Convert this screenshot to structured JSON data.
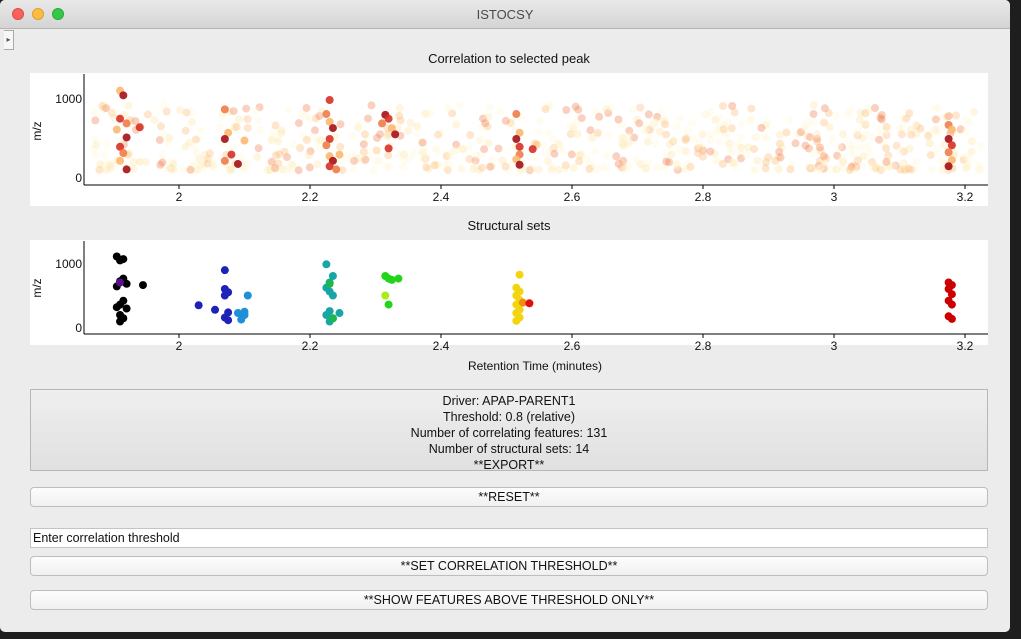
{
  "window": {
    "title": "ISTOCSY"
  },
  "plot1": {
    "title": "Correlation to selected peak",
    "ylabel": "m/z",
    "xticks": [
      "2",
      "2.2",
      "2.4",
      "2.6",
      "2.8",
      "3",
      "3.2"
    ],
    "yticks": [
      "1000",
      "0"
    ]
  },
  "plot2": {
    "title": "Structural sets",
    "ylabel": "m/z",
    "xlabel": "Retention Time (minutes)",
    "xticks": [
      "2",
      "2.2",
      "2.4",
      "2.6",
      "2.8",
      "3",
      "3.2"
    ],
    "yticks": [
      "1000",
      "0"
    ]
  },
  "chart_data": [
    {
      "type": "scatter",
      "title": "Correlation to selected peak",
      "xlabel": "",
      "ylabel": "m/z",
      "xlim": [
        1.86,
        3.24
      ],
      "ylim": [
        -100,
        1350
      ],
      "grid": false,
      "colormap": [
        "#fff5d6",
        "#fde6a8",
        "#fbb972",
        "#f07c4a",
        "#d73027",
        "#a50f15"
      ],
      "background_points": "dense cloud of faint low-correlation features spanning 1.86-3.24 min, m/z 100-950",
      "high_correlation_points": [
        {
          "x": 1.91,
          "y": 1120
        },
        {
          "x": 1.915,
          "y": 1060
        },
        {
          "x": 1.91,
          "y": 760
        },
        {
          "x": 1.92,
          "y": 700
        },
        {
          "x": 1.905,
          "y": 620
        },
        {
          "x": 1.92,
          "y": 520
        },
        {
          "x": 1.91,
          "y": 400
        },
        {
          "x": 1.915,
          "y": 320
        },
        {
          "x": 1.91,
          "y": 220
        },
        {
          "x": 1.92,
          "y": 110
        },
        {
          "x": 1.94,
          "y": 650
        },
        {
          "x": 2.07,
          "y": 880
        },
        {
          "x": 2.075,
          "y": 580
        },
        {
          "x": 2.07,
          "y": 500
        },
        {
          "x": 2.08,
          "y": 300
        },
        {
          "x": 2.07,
          "y": 220
        },
        {
          "x": 2.1,
          "y": 480
        },
        {
          "x": 2.09,
          "y": 180
        },
        {
          "x": 2.23,
          "y": 1000
        },
        {
          "x": 2.225,
          "y": 820
        },
        {
          "x": 2.23,
          "y": 720
        },
        {
          "x": 2.235,
          "y": 640
        },
        {
          "x": 2.23,
          "y": 500
        },
        {
          "x": 2.225,
          "y": 420
        },
        {
          "x": 2.23,
          "y": 280
        },
        {
          "x": 2.235,
          "y": 220
        },
        {
          "x": 2.23,
          "y": 150
        },
        {
          "x": 2.24,
          "y": 110
        },
        {
          "x": 2.245,
          "y": 300
        },
        {
          "x": 2.315,
          "y": 810
        },
        {
          "x": 2.32,
          "y": 760
        },
        {
          "x": 2.31,
          "y": 700
        },
        {
          "x": 2.325,
          "y": 640
        },
        {
          "x": 2.33,
          "y": 560
        },
        {
          "x": 2.32,
          "y": 380
        },
        {
          "x": 2.515,
          "y": 820
        },
        {
          "x": 2.52,
          "y": 580
        },
        {
          "x": 2.515,
          "y": 500
        },
        {
          "x": 2.52,
          "y": 400
        },
        {
          "x": 2.52,
          "y": 300
        },
        {
          "x": 2.515,
          "y": 240
        },
        {
          "x": 2.52,
          "y": 170
        },
        {
          "x": 2.54,
          "y": 370
        },
        {
          "x": 3.175,
          "y": 680
        },
        {
          "x": 3.18,
          "y": 620
        },
        {
          "x": 3.175,
          "y": 500
        },
        {
          "x": 3.18,
          "y": 420
        },
        {
          "x": 3.175,
          "y": 330
        },
        {
          "x": 3.18,
          "y": 230
        },
        {
          "x": 3.175,
          "y": 150
        }
      ]
    },
    {
      "type": "scatter",
      "title": "Structural sets",
      "xlabel": "Retention Time (minutes)",
      "ylabel": "m/z",
      "xlim": [
        1.86,
        3.24
      ],
      "ylim": [
        -100,
        1350
      ],
      "grid": false,
      "series": [
        {
          "color": "#000000",
          "points": [
            {
              "x": 1.905,
              "y": 1100
            },
            {
              "x": 1.915,
              "y": 1060
            },
            {
              "x": 1.91,
              "y": 1040
            },
            {
              "x": 1.915,
              "y": 760
            },
            {
              "x": 1.91,
              "y": 720
            },
            {
              "x": 1.92,
              "y": 680
            },
            {
              "x": 1.905,
              "y": 640
            },
            {
              "x": 1.945,
              "y": 660
            },
            {
              "x": 1.915,
              "y": 420
            },
            {
              "x": 1.91,
              "y": 360
            },
            {
              "x": 1.905,
              "y": 320
            },
            {
              "x": 1.92,
              "y": 300
            },
            {
              "x": 1.91,
              "y": 200
            },
            {
              "x": 1.915,
              "y": 150
            },
            {
              "x": 1.91,
              "y": 100
            }
          ]
        },
        {
          "color": "#5b0f8f",
          "points": [
            {
              "x": 1.91,
              "y": 700
            }
          ]
        },
        {
          "color": "#1e22b8",
          "points": [
            {
              "x": 2.03,
              "y": 350
            },
            {
              "x": 2.055,
              "y": 280
            },
            {
              "x": 2.07,
              "y": 890
            },
            {
              "x": 2.07,
              "y": 600
            },
            {
              "x": 2.075,
              "y": 550
            },
            {
              "x": 2.07,
              "y": 500
            },
            {
              "x": 2.075,
              "y": 240
            },
            {
              "x": 2.07,
              "y": 160
            },
            {
              "x": 2.075,
              "y": 120
            }
          ]
        },
        {
          "color": "#1f8fd8",
          "points": [
            {
              "x": 2.09,
              "y": 230
            },
            {
              "x": 2.1,
              "y": 200
            },
            {
              "x": 2.095,
              "y": 130
            },
            {
              "x": 2.105,
              "y": 500
            },
            {
              "x": 2.1,
              "y": 250
            }
          ]
        },
        {
          "color": "#17a6a6",
          "points": [
            {
              "x": 2.225,
              "y": 980
            },
            {
              "x": 2.235,
              "y": 800
            },
            {
              "x": 2.23,
              "y": 700
            },
            {
              "x": 2.225,
              "y": 620
            },
            {
              "x": 2.23,
              "y": 560
            },
            {
              "x": 2.235,
              "y": 500
            },
            {
              "x": 2.23,
              "y": 260
            },
            {
              "x": 2.225,
              "y": 200
            },
            {
              "x": 2.235,
              "y": 150
            },
            {
              "x": 2.23,
              "y": 100
            },
            {
              "x": 2.245,
              "y": 230
            }
          ]
        },
        {
          "color": "#1db84a",
          "points": [
            {
              "x": 2.23,
              "y": 680
            },
            {
              "x": 2.235,
              "y": 150
            }
          ]
        },
        {
          "color": "#22d41a",
          "points": [
            {
              "x": 2.315,
              "y": 800
            },
            {
              "x": 2.32,
              "y": 760
            },
            {
              "x": 2.325,
              "y": 740
            },
            {
              "x": 2.335,
              "y": 760
            },
            {
              "x": 2.32,
              "y": 360
            }
          ]
        },
        {
          "color": "#a8ec12",
          "points": [
            {
              "x": 2.315,
              "y": 500
            }
          ]
        },
        {
          "color": "#f2d50f",
          "points": [
            {
              "x": 2.52,
              "y": 820
            },
            {
              "x": 2.515,
              "y": 620
            },
            {
              "x": 2.52,
              "y": 560
            },
            {
              "x": 2.515,
              "y": 500
            },
            {
              "x": 2.52,
              "y": 430
            },
            {
              "x": 2.515,
              "y": 360
            },
            {
              "x": 2.52,
              "y": 280
            },
            {
              "x": 2.515,
              "y": 230
            },
            {
              "x": 2.52,
              "y": 160
            },
            {
              "x": 2.515,
              "y": 110
            }
          ]
        },
        {
          "color": "#f08a10",
          "points": [
            {
              "x": 2.525,
              "y": 390
            }
          ]
        },
        {
          "color": "#e01010",
          "points": [
            {
              "x": 2.535,
              "y": 380
            }
          ]
        },
        {
          "color": "#cc0000",
          "points": [
            {
              "x": 3.175,
              "y": 700
            },
            {
              "x": 3.18,
              "y": 660
            },
            {
              "x": 3.175,
              "y": 600
            },
            {
              "x": 3.18,
              "y": 520
            },
            {
              "x": 3.175,
              "y": 420
            },
            {
              "x": 3.18,
              "y": 360
            },
            {
              "x": 3.175,
              "y": 180
            },
            {
              "x": 3.18,
              "y": 140
            }
          ]
        }
      ]
    }
  ],
  "info": {
    "driver": "Driver: APAP-PARENT1",
    "threshold": "Threshold: 0.8 (relative)",
    "num_features": "Number of correlating features: 131",
    "num_sets": "Number of structural sets: 14",
    "export": "**EXPORT**"
  },
  "buttons": {
    "reset": "**RESET**",
    "set_threshold": "**SET CORRELATION THRESHOLD**",
    "show_above": "**SHOW FEATURES ABOVE THRESHOLD ONLY**"
  },
  "threshold_input": {
    "value": "Enter correlation threshold"
  }
}
